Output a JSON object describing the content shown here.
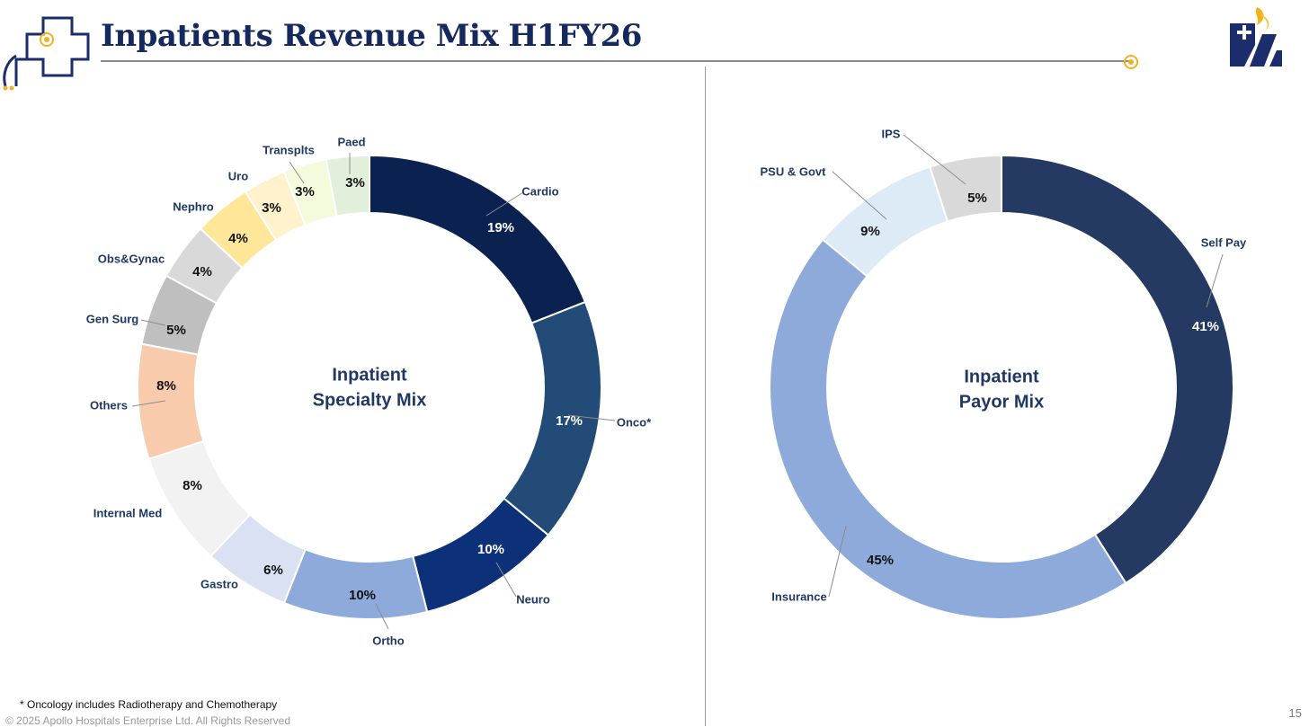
{
  "slide": {
    "title": "Inpatients Revenue Mix H1FY26",
    "footnote": "* Oncology includes Radiotherapy and Chemotherapy",
    "copyright": "© 2025 Apollo Hospitals Enterprise Ltd. All Rights Reserved",
    "page_number": "15"
  },
  "chart_data": [
    {
      "type": "pie",
      "style": "donut",
      "title": "Inpatient Specialty Mix",
      "center_lines": [
        "Inpatient",
        "Specialty Mix"
      ],
      "slices": [
        {
          "label": "Cardio",
          "value": 19,
          "pct": "19%",
          "color": "#0b2150"
        },
        {
          "label": "Onco*",
          "value": 17,
          "pct": "17%",
          "color": "#224b77"
        },
        {
          "label": "Neuro",
          "value": 10,
          "pct": "10%",
          "color": "#0d3179"
        },
        {
          "label": "Ortho",
          "value": 10,
          "pct": "10%",
          "color": "#8eaadb"
        },
        {
          "label": "Gastro",
          "value": 6,
          "pct": "6%",
          "color": "#d9e1f2"
        },
        {
          "label": "Internal Med",
          "value": 8,
          "pct": "8%",
          "color": "#f2f2f2"
        },
        {
          "label": "Others",
          "value": 8,
          "pct": "8%",
          "color": "#f8cbad"
        },
        {
          "label": "Gen Surg",
          "value": 5,
          "pct": "5%",
          "color": "#bfbfbf"
        },
        {
          "label": "Obs&Gynac",
          "value": 4,
          "pct": "4%",
          "color": "#d9d9d9"
        },
        {
          "label": "Nephro",
          "value": 4,
          "pct": "4%",
          "color": "#ffe699"
        },
        {
          "label": "Uro",
          "value": 3,
          "pct": "3%",
          "color": "#fff2cc"
        },
        {
          "label": "Transplts",
          "value": 3,
          "pct": "3%",
          "color": "#f3fbdc"
        },
        {
          "label": "Paed",
          "value": 3,
          "pct": "3%",
          "color": "#e2efda"
        }
      ]
    },
    {
      "type": "pie",
      "style": "donut",
      "title": "Inpatient Payor Mix",
      "center_lines": [
        "Inpatient",
        "Payor Mix"
      ],
      "slices": [
        {
          "label": "Self Pay",
          "value": 41,
          "pct": "41%",
          "color": "#243a63"
        },
        {
          "label": "Insurance",
          "value": 45,
          "pct": "45%",
          "color": "#8eaadb"
        },
        {
          "label": "PSU & Govt",
          "value": 9,
          "pct": "9%",
          "color": "#ddebf7"
        },
        {
          "label": "IPS",
          "value": 5,
          "pct": "5%",
          "color": "#d9d9d9"
        }
      ]
    }
  ],
  "colors": {
    "title": "#16295e",
    "label_navy": "#1f3864",
    "accent_gold": "#f2b21e",
    "rule_gray": "#8a8a8a"
  },
  "icons": [
    "medical-cross-stethoscope-icon",
    "apollo-logo-icon"
  ]
}
